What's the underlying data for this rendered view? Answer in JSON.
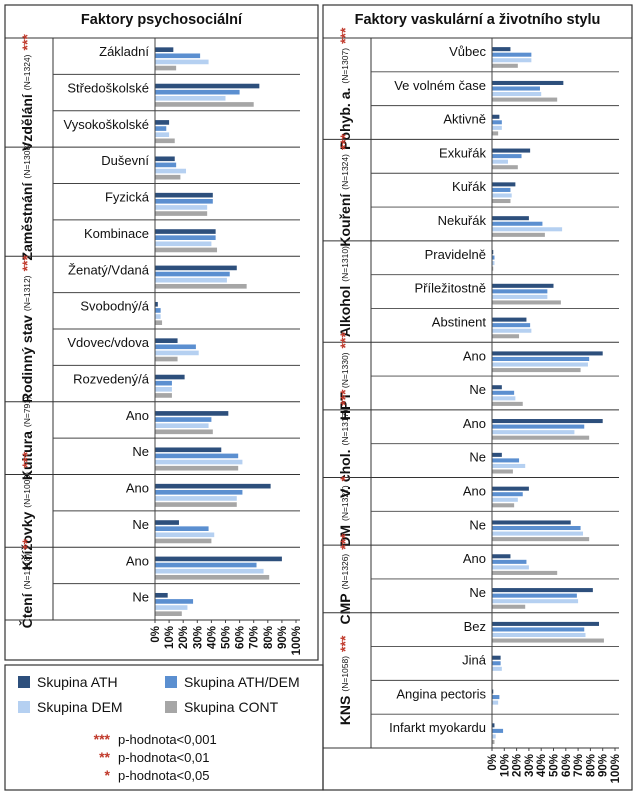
{
  "colors": {
    "ATH": "#2d4f7c",
    "ATH/DEM": "#5b8fd0",
    "DEM": "#b5d0f1",
    "CONT": "#a6a6a6",
    "sig": "#c0392b"
  },
  "legend": {
    "items": [
      {
        "label": "Skupina ATH",
        "key": "ATH"
      },
      {
        "label": "Skupina ATH/DEM",
        "key": "ATH/DEM"
      },
      {
        "label": "Skupina DEM",
        "key": "DEM"
      },
      {
        "label": "Skupina CONT",
        "key": "CONT"
      }
    ],
    "significance": [
      {
        "stars": "***",
        "text": "p-hodnota<0,001"
      },
      {
        "stars": "**",
        "text": "p-hodnota<0,01"
      },
      {
        "stars": "*",
        "text": "p-hodnota<0,05"
      }
    ]
  },
  "chart_data": [
    {
      "type": "bar",
      "orientation": "horizontal",
      "title": "Faktory psychosociální",
      "series_order": [
        "ATH",
        "ATH/DEM",
        "DEM",
        "CONT"
      ],
      "xlim": [
        0,
        100
      ],
      "xticks": [
        "0%",
        "10%",
        "20%",
        "30%",
        "40%",
        "50%",
        "60%",
        "70%",
        "80%",
        "90%",
        "100%"
      ],
      "groups": [
        {
          "label": "Vzdělání",
          "n": "(N=1324)",
          "sig": "***",
          "categories": [
            {
              "label": "Základní",
              "values": [
                13,
                32,
                38,
                15
              ]
            },
            {
              "label": "Středoškolské",
              "values": [
                74,
                60,
                50,
                70
              ]
            },
            {
              "label": "Vysokoškolské",
              "values": [
                10,
                8,
                10,
                14
              ]
            }
          ]
        },
        {
          "label": "Zaměstnání",
          "n": "(N=1308)",
          "sig": "",
          "categories": [
            {
              "label": "Duševní",
              "values": [
                14,
                15,
                22,
                18
              ]
            },
            {
              "label": "Fyzická",
              "values": [
                41,
                41,
                37,
                37
              ]
            },
            {
              "label": "Kombinace",
              "values": [
                43,
                43,
                40,
                44
              ]
            }
          ]
        },
        {
          "label": "Rodinný stav",
          "n": "(N=1312)",
          "sig": "***",
          "categories": [
            {
              "label": "Ženatý/Vdaná",
              "values": [
                58,
                53,
                51,
                65
              ]
            },
            {
              "label": "Svobodný/á",
              "values": [
                2,
                4,
                4,
                5
              ]
            },
            {
              "label": "Vdovec/vdova",
              "values": [
                16,
                29,
                31,
                16
              ]
            },
            {
              "label": "Rozvedený/á",
              "values": [
                21,
                12,
                12,
                12
              ]
            }
          ]
        },
        {
          "label": "Kultura",
          "n": "(N=791)",
          "sig": "",
          "categories": [
            {
              "label": "Ano",
              "values": [
                52,
                40,
                38,
                41
              ]
            },
            {
              "label": "Ne",
              "values": [
                47,
                59,
                62,
                59
              ]
            }
          ]
        },
        {
          "label": "Křížovky",
          "n": "(N=1003)",
          "sig": "***",
          "categories": [
            {
              "label": "Ano",
              "values": [
                82,
                62,
                58,
                58
              ]
            },
            {
              "label": "Ne",
              "values": [
                17,
                38,
                42,
                40
              ]
            }
          ]
        },
        {
          "label": "Čtení",
          "n": "(N=1218)",
          "sig": "**",
          "categories": [
            {
              "label": "Ano",
              "values": [
                90,
                72,
                77,
                81
              ]
            },
            {
              "label": "Ne",
              "values": [
                9,
                27,
                23,
                19
              ]
            }
          ]
        }
      ]
    },
    {
      "type": "bar",
      "orientation": "horizontal",
      "title": "Faktory vaskulární a životního stylu",
      "series_order": [
        "ATH",
        "ATH/DEM",
        "DEM",
        "CONT"
      ],
      "xlim": [
        0,
        100
      ],
      "xticks": [
        "0%",
        "10%",
        "20%",
        "30%",
        "40%",
        "50%",
        "60%",
        "70%",
        "80%",
        "90%",
        "100%"
      ],
      "groups": [
        {
          "label": "Pohyb. a.",
          "n": "(N=1307)",
          "sig": "***",
          "categories": [
            {
              "label": "Vůbec",
              "values": [
                15,
                32,
                32,
                21
              ]
            },
            {
              "label": "Ve volném čase",
              "values": [
                58,
                39,
                40,
                53
              ]
            },
            {
              "label": "Aktivně",
              "values": [
                6,
                8,
                8,
                5
              ]
            }
          ]
        },
        {
          "label": "Kouření",
          "n": "(N=1324)",
          "sig": "***",
          "categories": [
            {
              "label": "Exkuřák",
              "values": [
                31,
                24,
                13,
                21
              ]
            },
            {
              "label": "Kuřák",
              "values": [
                19,
                15,
                16,
                15
              ]
            },
            {
              "label": "Nekuřák",
              "values": [
                30,
                41,
                57,
                43
              ]
            }
          ]
        },
        {
          "label": "Alkohol",
          "n": "(N=1310)",
          "sig": "",
          "categories": [
            {
              "label": "Pravidelně",
              "values": [
                1,
                2,
                2,
                1
              ]
            },
            {
              "label": "Příležitostně",
              "values": [
                50,
                45,
                45,
                56
              ]
            },
            {
              "label": "Abstinent",
              "values": [
                28,
                31,
                32,
                22
              ]
            }
          ]
        },
        {
          "label": "HPT",
          "n": "(N=1330)",
          "sig": "***",
          "categories": [
            {
              "label": "Ano",
              "values": [
                90,
                79,
                78,
                72
              ]
            },
            {
              "label": "Ne",
              "values": [
                8,
                18,
                19,
                25
              ]
            }
          ]
        },
        {
          "label": "V. chol.",
          "n": "(N=1317)",
          "sig": "***",
          "categories": [
            {
              "label": "Ano",
              "values": [
                90,
                75,
                67,
                79
              ]
            },
            {
              "label": "Ne",
              "values": [
                8,
                22,
                27,
                17
              ]
            }
          ]
        },
        {
          "label": "DM",
          "n": "(N=1327)",
          "sig": "*",
          "categories": [
            {
              "label": "Ano",
              "values": [
                30,
                25,
                21,
                18
              ]
            },
            {
              "label": "Ne",
              "values": [
                64,
                72,
                74,
                79
              ]
            }
          ]
        },
        {
          "label": "CMP",
          "n": "(N=1326)",
          "sig": "***",
          "categories": [
            {
              "label": "Ano",
              "values": [
                15,
                28,
                30,
                53
              ]
            },
            {
              "label": "Ne",
              "values": [
                82,
                69,
                70,
                27
              ]
            }
          ]
        },
        {
          "label": "KNS",
          "n": "(N=1058)",
          "sig": "***",
          "categories": [
            {
              "label": "Bez",
              "values": [
                87,
                75,
                76,
                91
              ]
            },
            {
              "label": "Jiná",
              "values": [
                7,
                7,
                8,
                0
              ]
            },
            {
              "label": "Angina pectoris",
              "values": [
                1,
                6,
                5,
                0
              ]
            },
            {
              "label": "Infarkt myokardu",
              "values": [
                2,
                9,
                3,
                2
              ]
            }
          ]
        }
      ]
    }
  ]
}
